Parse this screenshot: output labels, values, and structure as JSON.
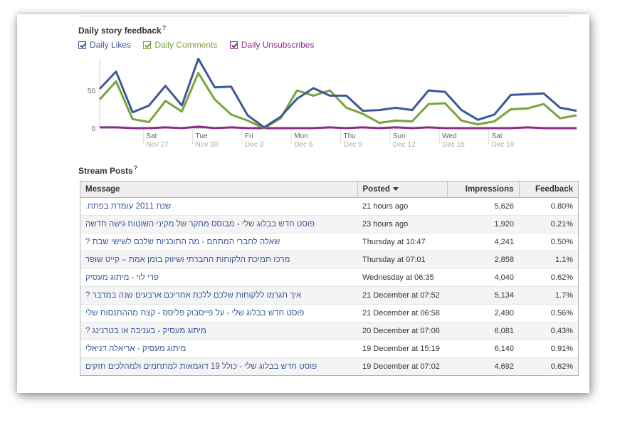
{
  "feedback": {
    "title": "Daily story feedback",
    "help": "?",
    "legend": [
      {
        "label": "Daily Likes",
        "color": "#3b5998"
      },
      {
        "label": "Daily Comments",
        "color": "#7aa33a"
      },
      {
        "label": "Daily Unsubscribes",
        "color": "#8a2d8a"
      }
    ]
  },
  "chart_data": {
    "type": "line",
    "y_ticks": [
      "50",
      "0"
    ],
    "ylim": [
      0,
      100
    ],
    "x_tick_labels": [
      {
        "day": "Sat",
        "date": "Nov 27"
      },
      {
        "day": "Tue",
        "date": "Nov 30"
      },
      {
        "day": "Fri",
        "date": "Dec 3"
      },
      {
        "day": "Mon",
        "date": "Dec 6"
      },
      {
        "day": "Thu",
        "date": "Dec 9"
      },
      {
        "day": "Sun",
        "date": "Dec 12"
      },
      {
        "day": "Wed",
        "date": "Dec 15"
      },
      {
        "day": "Sat",
        "date": "Dec 18"
      }
    ],
    "series": [
      {
        "name": "Daily Likes",
        "color": "#3b5998",
        "values": [
          52,
          75,
          21,
          30,
          56,
          30,
          92,
          54,
          55,
          17,
          1,
          15,
          39,
          53,
          43,
          43,
          23,
          24,
          27,
          24,
          50,
          48,
          24,
          11,
          18,
          44,
          45,
          46,
          27,
          23
        ]
      },
      {
        "name": "Daily Comments",
        "color": "#7aa33a",
        "values": [
          38,
          62,
          12,
          8,
          36,
          22,
          73,
          38,
          18,
          10,
          0,
          13,
          50,
          43,
          50,
          27,
          19,
          7,
          10,
          9,
          32,
          33,
          10,
          5,
          9,
          25,
          26,
          32,
          13,
          17
        ]
      },
      {
        "name": "Daily Unsubscribes",
        "color": "#8a2d8a",
        "values": [
          1,
          1,
          0,
          0,
          1,
          0,
          2,
          0,
          1,
          0,
          0,
          0,
          0,
          0,
          1,
          0,
          1,
          0,
          1,
          0,
          1,
          0,
          0,
          0,
          0,
          0,
          1,
          0,
          0,
          0
        ]
      }
    ]
  },
  "stream": {
    "title": "Stream Posts",
    "help": "?",
    "columns": {
      "message": "Message",
      "posted": "Posted",
      "impressions": "Impressions",
      "feedback": "Feedback"
    },
    "rows": [
      {
        "message": "שנת 2011 עומדת בפתח.",
        "posted": "21 hours ago",
        "impressions": "5,626",
        "feedback": "0.80%"
      },
      {
        "message": "פוסט חדש בבלוג שלי - מבוסס מחקר של מקיני השוטוח גישה חדשה",
        "posted": "23 hours ago",
        "impressions": "1,920",
        "feedback": "0.21%"
      },
      {
        "message": "שאלה לחברי המתחם - מה התוכניות שלכם לשישי שבת ?",
        "posted": "Thursday at 10:47",
        "impressions": "4,241",
        "feedback": "0.50%"
      },
      {
        "message": "מרכז תמיכת הלקוחות החברתי ושיווק בזמן אמת – קייט שופר",
        "posted": "Thursday at 07:01",
        "impressions": "2,858",
        "feedback": "1.1%"
      },
      {
        "message": "פרי לוי - מיתוג מעסיק",
        "posted": "Wednesday at 06:35",
        "impressions": "4,040",
        "feedback": "0.62%"
      },
      {
        "message": "איך תגרמו ללקוחות שלכם ללכת אחריכם ארבעים שנה במדבר ?",
        "posted": "21 December at 07:52",
        "impressions": "5,134",
        "feedback": "1.7%"
      },
      {
        "message": "פוסט חדש בבלוג שלי - על פייסבוק פליסס - קצת מההתנסות שלי",
        "posted": "21 December at 06:58",
        "impressions": "2,490",
        "feedback": "0.56%"
      },
      {
        "message": "מיתוג מעסיק - בעניבה או בטרנינג ?",
        "posted": "20 December at 07:06",
        "impressions": "6,081",
        "feedback": "0.43%"
      },
      {
        "message": "מיתוג מעסיק - אריאלה דניאלי",
        "posted": "19 December at 15:19",
        "impressions": "6,140",
        "feedback": "0.91%"
      },
      {
        "message": "פוסט חדש בבלוג שלי - כולל 19 דוגמאות למתחמים ולמהלכים חזקים",
        "posted": "19 December at 07:02",
        "impressions": "4,692",
        "feedback": "0.62%"
      }
    ]
  }
}
